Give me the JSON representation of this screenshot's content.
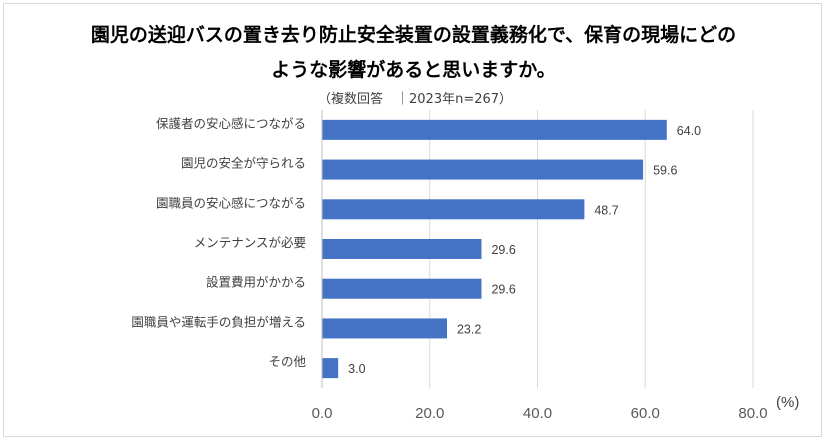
{
  "chart_data": {
    "type": "bar",
    "orientation": "horizontal",
    "title_line1": "園児の送迎バスの置き去り防止安全装置の設置義務化で、保育の現場にどの",
    "title_line2": "ような影響があると思いますか。",
    "subtitle": "（複数回答　｜2023年n=267）",
    "categories": [
      "保護者の安心感につながる",
      "園児の安全が守られる",
      "園職員の安心感につながる",
      "メンテナンスが必要",
      "設置費用がかかる",
      "園職員や運転手の負担が増える",
      "その他"
    ],
    "values": [
      64.0,
      59.6,
      48.7,
      29.6,
      29.6,
      23.2,
      3.0
    ],
    "value_labels": [
      "64.0",
      "59.6",
      "48.7",
      "29.6",
      "29.6",
      "23.2",
      "3.0"
    ],
    "xlim": [
      0,
      80
    ],
    "xticks": [
      0,
      20,
      40,
      60,
      80
    ],
    "xtick_labels": [
      "0.0",
      "20.0",
      "40.0",
      "60.0",
      "80.0"
    ],
    "xlabel": "(%)",
    "bar_color": "#4472c4",
    "grid": true
  }
}
